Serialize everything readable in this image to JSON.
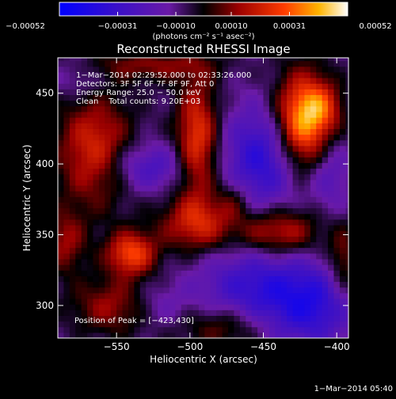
{
  "chart_data": {
    "type": "heatmap",
    "title": "Reconstructed RHESSI Image",
    "xlabel": "Heliocentric X (arcsec)",
    "ylabel": "Heliocentric Y (arcsec)",
    "xlim": [
      -590,
      -392
    ],
    "ylim": [
      277,
      475
    ],
    "x_ticks": [
      -550,
      -500,
      -450,
      -400
    ],
    "y_ticks": [
      300,
      350,
      400,
      450
    ],
    "x_tick_labels": [
      "−550",
      "−500",
      "−450",
      "−400"
    ],
    "y_tick_labels": [
      "300",
      "350",
      "400",
      "450"
    ],
    "colorbar": {
      "min": -0.00052,
      "max": 0.00052,
      "ticks": [
        -0.00052,
        -0.00031,
        -0.0001,
        0.0001,
        0.00031,
        0.00052
      ],
      "tick_labels": [
        "−0.00052",
        "−0.00031",
        "−0.00010",
        "0.00010",
        "0.00031",
        "0.00052"
      ],
      "units_label": "(photons cm⁻² s⁻¹ asec⁻²)"
    },
    "annotations": [
      "1−Mar−2014 02:29:52.000 to 02:33:26.000",
      "Detectors: 3F 5F 6F 7F 8F 9F, Att 0",
      "Energy Range: 25.0 − 50.0 keV",
      "Clean    Total counts: 9.20E+03"
    ],
    "peak_label": "Position of Peak = [−423,430]",
    "peak_position": [
      -423,
      430
    ],
    "grid": false,
    "sources": [
      {
        "x": -423,
        "y": 430,
        "sx": 14,
        "sy": 24,
        "amp": 0.0005
      },
      {
        "x": -410,
        "y": 440,
        "sx": 10,
        "sy": 12,
        "amp": 0.00018
      },
      {
        "x": -540,
        "y": 337,
        "sx": 12,
        "sy": 11,
        "amp": 0.00036
      },
      {
        "x": -548,
        "y": 300,
        "sx": 22,
        "sy": 14,
        "amp": 0.00024
      },
      {
        "x": -495,
        "y": 358,
        "sx": 18,
        "sy": 14,
        "amp": 0.00028
      },
      {
        "x": -440,
        "y": 352,
        "sx": 20,
        "sy": 12,
        "amp": 0.0003
      },
      {
        "x": -495,
        "y": 418,
        "sx": 10,
        "sy": 30,
        "amp": 0.00034
      },
      {
        "x": -565,
        "y": 410,
        "sx": 18,
        "sy": 28,
        "amp": 0.0003
      },
      {
        "x": -475,
        "y": 285,
        "sx": 22,
        "sy": 12,
        "amp": 0.00022
      },
      {
        "x": -395,
        "y": 330,
        "sx": 8,
        "sy": 18,
        "amp": 0.0002
      },
      {
        "x": -585,
        "y": 345,
        "sx": 10,
        "sy": 16,
        "amp": 0.0002
      },
      {
        "x": -525,
        "y": 470,
        "sx": 30,
        "sy": 8,
        "amp": 0.00018
      },
      {
        "x": -470,
        "y": 375,
        "sx": 8,
        "sy": 10,
        "amp": 0.00012
      },
      {
        "x": -530,
        "y": 398,
        "sx": 20,
        "sy": 12,
        "amp": -0.0002
      },
      {
        "x": -450,
        "y": 405,
        "sx": 18,
        "sy": 26,
        "amp": -0.0003
      },
      {
        "x": -455,
        "y": 310,
        "sx": 28,
        "sy": 24,
        "amp": -0.00026
      },
      {
        "x": -525,
        "y": 300,
        "sx": 16,
        "sy": 12,
        "amp": -0.00016
      },
      {
        "x": -415,
        "y": 300,
        "sx": 20,
        "sy": 20,
        "amp": -0.00024
      },
      {
        "x": -405,
        "y": 395,
        "sx": 10,
        "sy": 20,
        "amp": -0.00016
      },
      {
        "x": -575,
        "y": 460,
        "sx": 12,
        "sy": 10,
        "amp": -0.0001
      }
    ],
    "baseline": -8e-05
  },
  "footer": {
    "timestamp": "1−Mar−2014 05:40"
  }
}
